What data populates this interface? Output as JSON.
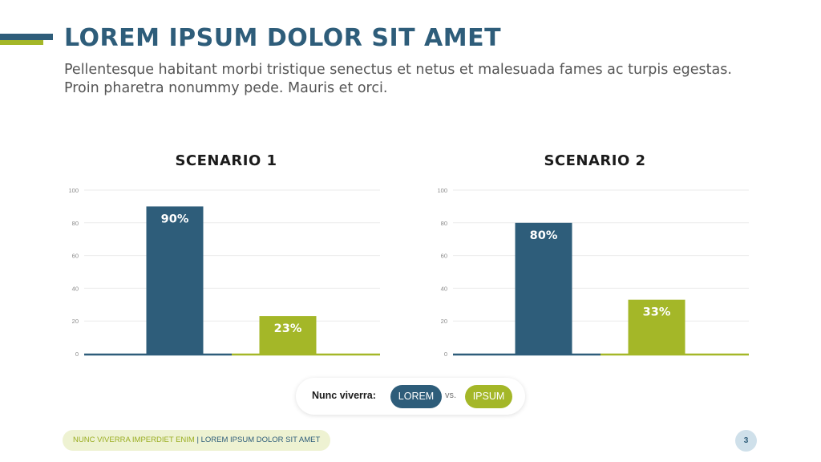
{
  "slide": {
    "title": "LOREM IPSUM DOLOR SIT AMET",
    "subtitle": "Pellentesque habitant morbi tristique senectus et netus et malesuada fames ac turpis egestas. Proin pharetra nonummy pede. Mauris et orci.",
    "page_number": "3"
  },
  "colors": {
    "primary": "#2e5d7a",
    "accent": "#a4b728",
    "grid": "#ebebeb",
    "tick": "#8a8a8a"
  },
  "legend": {
    "label": "Nunc viverra:",
    "series1": "LOREM",
    "vs": "vs.",
    "series2": "IPSUM"
  },
  "footer": {
    "left": "NUNC VIVERRA IMPERDIET ENIM",
    "separator": "|",
    "right": "LOREM IPSUM DOLOR SIT AMET"
  },
  "chart_data": [
    {
      "type": "bar",
      "title": "SCENARIO 1",
      "categories": [
        "LOREM",
        "IPSUM"
      ],
      "values": [
        90,
        23
      ],
      "labels": [
        "90%",
        "23%"
      ],
      "ylim": [
        0,
        100
      ],
      "yticks": [
        0,
        20,
        40,
        60,
        80,
        100
      ],
      "grid": true
    },
    {
      "type": "bar",
      "title": "SCENARIO 2",
      "categories": [
        "LOREM",
        "IPSUM"
      ],
      "values": [
        80,
        33
      ],
      "labels": [
        "80%",
        "33%"
      ],
      "ylim": [
        0,
        100
      ],
      "yticks": [
        0,
        20,
        40,
        60,
        80,
        100
      ],
      "grid": true
    }
  ]
}
